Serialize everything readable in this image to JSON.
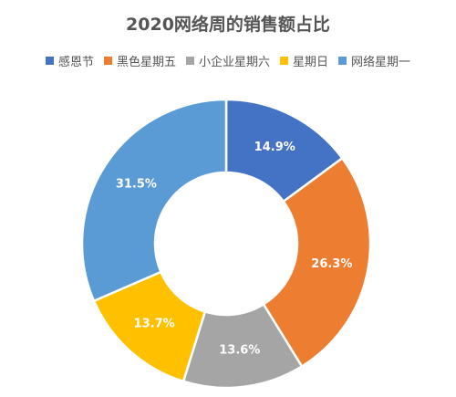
{
  "chart_data": {
    "type": "pie",
    "title": "2020网络周的销售额占比",
    "legend_position": "top",
    "categories": [
      "感恩节",
      "黑色星期五",
      "小企业星期六",
      "星期日",
      "网络星期一"
    ],
    "values": [
      14.9,
      26.3,
      13.6,
      13.7,
      31.5
    ],
    "data_labels": [
      "14.9%",
      "26.3%",
      "13.6%",
      "13.7%",
      "31.5%"
    ],
    "colors": [
      "#4472C4",
      "#ED7D31",
      "#A5A5A5",
      "#FFC000",
      "#5B9BD5"
    ],
    "donut": true
  }
}
